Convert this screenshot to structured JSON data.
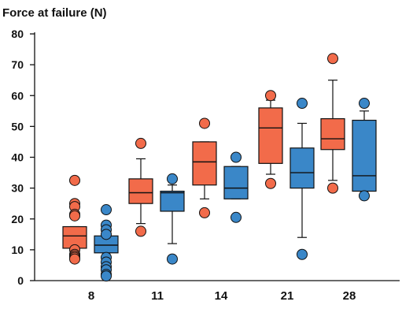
{
  "chart_data": {
    "type": "box",
    "ylabel": "Force at failure (N)",
    "xlabel": "",
    "ylim": [
      0,
      80
    ],
    "yticks": [
      0,
      10,
      20,
      30,
      40,
      50,
      60,
      70,
      80
    ],
    "categories": [
      "8",
      "11",
      "14",
      "21",
      "28"
    ],
    "grid": false,
    "series": [
      {
        "color": "#F26B4A",
        "boxes": [
          {
            "category": "8",
            "q1": 10.5,
            "median": 14.5,
            "q3": 17.5,
            "whisker_low": 8.5,
            "whisker_high": 17.5,
            "outliers": [
              32.5,
              25,
              24,
              21.5,
              21,
              10,
              8.5,
              8,
              7.5,
              7
            ]
          },
          {
            "category": "11",
            "q1": 25,
            "median": 28.5,
            "q3": 33,
            "whisker_low": 18.5,
            "whisker_high": 39.5,
            "outliers": [
              44.5,
              16
            ]
          },
          {
            "category": "14",
            "q1": 31,
            "median": 38.5,
            "q3": 45,
            "whisker_low": 26.5,
            "whisker_high": 45,
            "outliers": [
              51,
              22
            ]
          },
          {
            "category": "21",
            "q1": 38,
            "median": 49.5,
            "q3": 56,
            "whisker_low": 34.5,
            "whisker_high": 58.5,
            "outliers": [
              60,
              31.5
            ]
          },
          {
            "category": "28",
            "q1": 42.5,
            "median": 46,
            "q3": 52.5,
            "whisker_low": 32.5,
            "whisker_high": 65,
            "outliers": [
              72,
              30
            ]
          }
        ]
      },
      {
        "color": "#3A87C8",
        "boxes": [
          {
            "category": "8",
            "q1": 9,
            "median": 11.5,
            "q3": 14.5,
            "whisker_low": 9,
            "whisker_high": 14.5,
            "outliers": [
              23,
              18,
              16.5,
              15,
              7.5,
              6,
              4.5,
              3.5,
              2,
              1.5
            ]
          },
          {
            "category": "11",
            "q1": 22.5,
            "median": 28.5,
            "q3": 29,
            "whisker_low": 12,
            "whisker_high": 31,
            "outliers": [
              33,
              7
            ]
          },
          {
            "category": "14",
            "q1": 26.5,
            "median": 30,
            "q3": 37,
            "whisker_low": 26.5,
            "whisker_high": 37,
            "outliers": [
              40,
              20.5
            ]
          },
          {
            "category": "21",
            "q1": 30,
            "median": 35,
            "q3": 43,
            "whisker_low": 14,
            "whisker_high": 51,
            "outliers": [
              57.5,
              8.5
            ]
          },
          {
            "category": "28",
            "q1": 29,
            "median": 34,
            "q3": 52,
            "whisker_low": 29,
            "whisker_high": 55,
            "outliers": [
              57.5,
              27.5
            ]
          }
        ]
      }
    ]
  }
}
